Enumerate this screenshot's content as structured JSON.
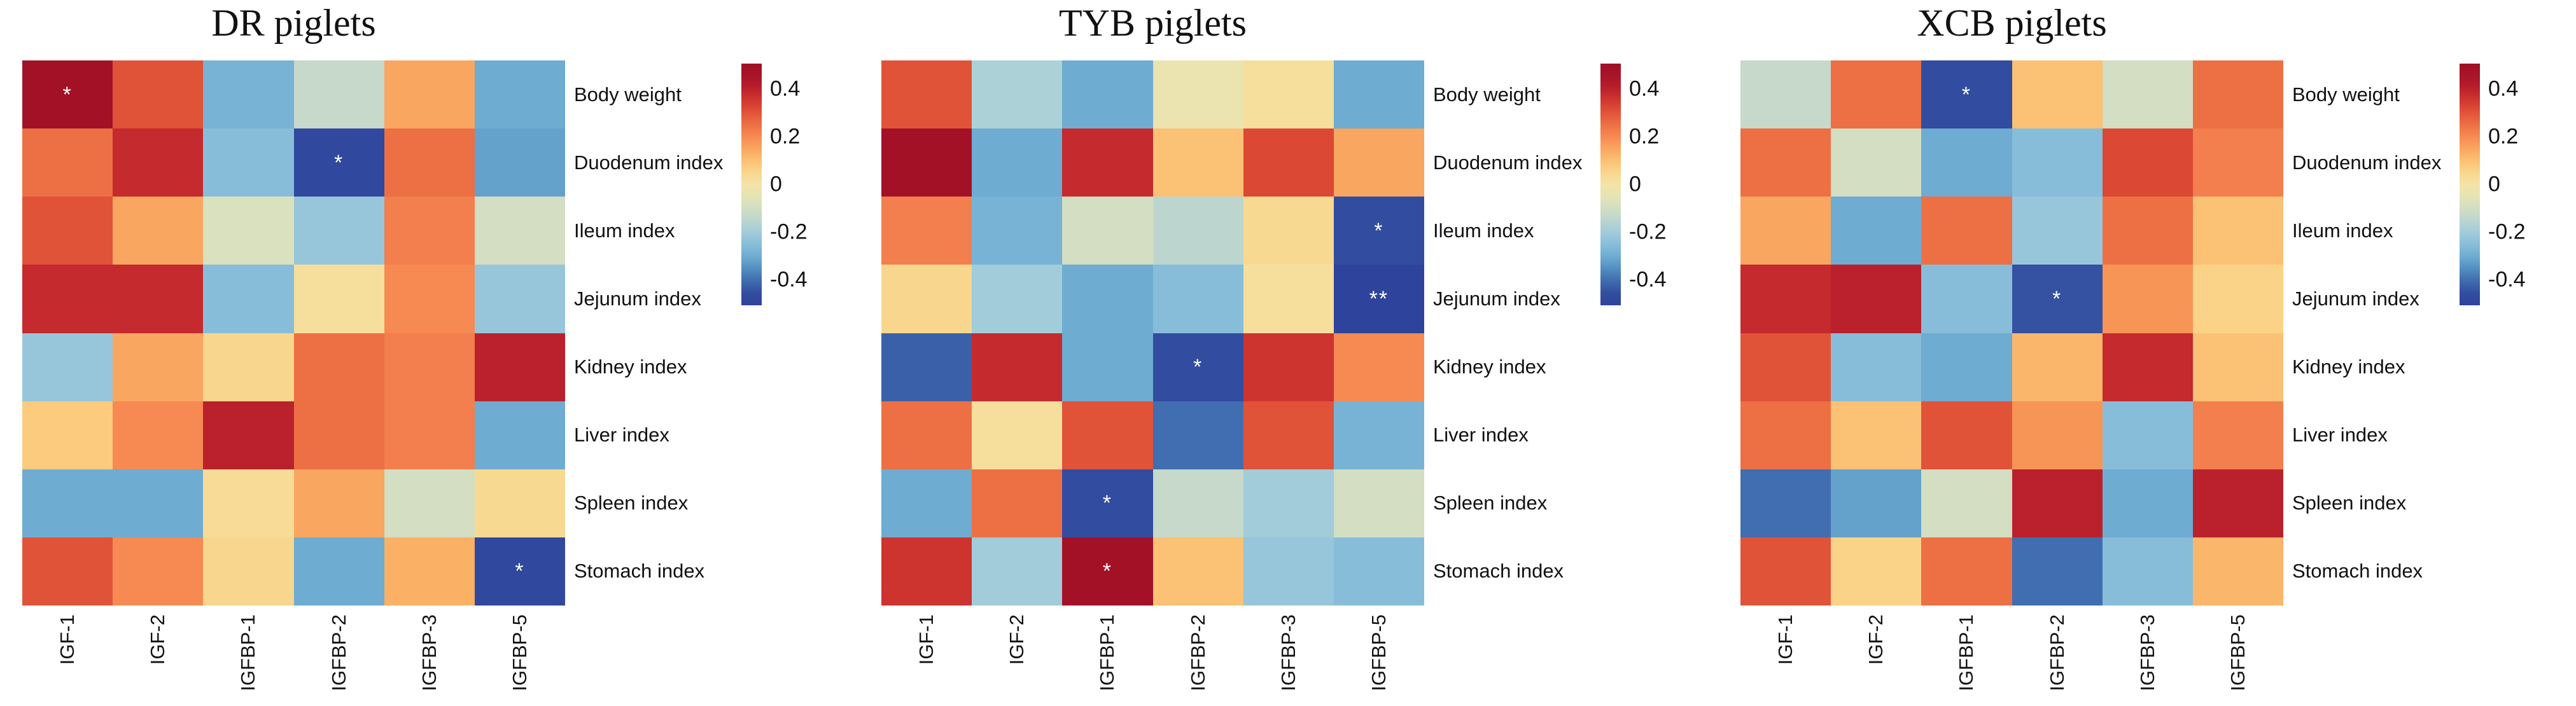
{
  "chart_data": {
    "type": "heatmap",
    "description": "Three correlation heatmaps between IGF-axis gene expression and organ indexes in three piglet breeds",
    "x_labels": [
      "IGF-1",
      "IGF-2",
      "IGFBP-1",
      "IGFBP-2",
      "IGFBP-3",
      "IGFBP-5"
    ],
    "y_labels": [
      "Body weight",
      "Duodenum index",
      "Ileum index",
      "Jejunum index",
      "Kidney index",
      "Liver index",
      "Spleen index",
      "Stomach index"
    ],
    "colorbar_ticks": [
      {
        "label": "0.4",
        "value": 0.4
      },
      {
        "label": "0.2",
        "value": 0.2
      },
      {
        "label": "0",
        "value": 0
      },
      {
        "label": "-0.2",
        "value": -0.2
      },
      {
        "label": "-0.4",
        "value": -0.4
      }
    ],
    "color_scale": {
      "min": -0.5,
      "max": 0.5,
      "palette": "red-yellow-blue",
      "high_color": "#a50f26",
      "mid_color": "#f3e4a6",
      "low_color": "#2c3e98"
    },
    "legend_position": "right-of-each-panel",
    "grid": false,
    "panels": [
      {
        "title": "DR piglets",
        "values": [
          [
            0.48,
            0.3,
            -0.28,
            -0.13,
            0.15,
            -0.3
          ],
          [
            0.25,
            0.38,
            -0.25,
            -0.48,
            0.25,
            -0.32
          ],
          [
            0.3,
            0.15,
            -0.08,
            -0.22,
            0.22,
            -0.1
          ],
          [
            0.38,
            0.38,
            -0.25,
            0.02,
            0.2,
            -0.22
          ],
          [
            -0.22,
            0.15,
            0.05,
            0.25,
            0.22,
            0.4
          ],
          [
            0.08,
            0.2,
            0.4,
            0.25,
            0.22,
            -0.3
          ],
          [
            -0.3,
            -0.3,
            0.03,
            0.15,
            -0.1,
            0.04
          ],
          [
            0.3,
            0.2,
            0.05,
            -0.3,
            0.13,
            -0.48
          ]
        ],
        "significance": [
          [
            "*",
            "",
            "",
            "",
            "",
            ""
          ],
          [
            "",
            "",
            "",
            "*",
            "",
            ""
          ],
          [
            "",
            "",
            "",
            "",
            "",
            ""
          ],
          [
            "",
            "",
            "",
            "",
            "",
            ""
          ],
          [
            "",
            "",
            "",
            "",
            "",
            ""
          ],
          [
            "",
            "",
            "",
            "",
            "",
            ""
          ],
          [
            "",
            "",
            "",
            "",
            "",
            ""
          ],
          [
            "",
            "",
            "",
            "",
            "",
            "*"
          ]
        ]
      },
      {
        "title": "TYB piglets",
        "values": [
          [
            0.3,
            -0.18,
            -0.3,
            -0.03,
            0.02,
            -0.3
          ],
          [
            0.48,
            -0.3,
            0.38,
            0.1,
            0.32,
            0.15
          ],
          [
            0.22,
            -0.28,
            -0.1,
            -0.15,
            0.04,
            -0.46
          ],
          [
            0.05,
            -0.2,
            -0.3,
            -0.25,
            0.02,
            -0.5
          ],
          [
            -0.42,
            0.38,
            -0.3,
            -0.46,
            0.36,
            0.2
          ],
          [
            0.25,
            0.02,
            0.3,
            -0.4,
            0.3,
            -0.28
          ],
          [
            -0.3,
            0.25,
            -0.46,
            -0.13,
            -0.2,
            -0.1
          ],
          [
            0.36,
            -0.2,
            0.48,
            0.1,
            -0.22,
            -0.25
          ]
        ],
        "significance": [
          [
            "",
            "",
            "",
            "",
            "",
            ""
          ],
          [
            "",
            "",
            "",
            "",
            "",
            ""
          ],
          [
            "",
            "",
            "",
            "",
            "",
            "*"
          ],
          [
            "",
            "",
            "",
            "",
            "",
            "**"
          ],
          [
            "",
            "",
            "",
            "*",
            "",
            ""
          ],
          [
            "",
            "",
            "",
            "",
            "",
            ""
          ],
          [
            "",
            "",
            "*",
            "",
            "",
            ""
          ],
          [
            "",
            "",
            "*",
            "",
            "",
            ""
          ]
        ]
      },
      {
        "title": "XCB piglets",
        "values": [
          [
            -0.13,
            0.25,
            -0.46,
            0.1,
            -0.1,
            0.25
          ],
          [
            0.25,
            -0.1,
            -0.3,
            -0.25,
            0.32,
            0.22
          ],
          [
            0.15,
            -0.3,
            0.25,
            -0.22,
            0.25,
            0.1
          ],
          [
            0.38,
            0.4,
            -0.25,
            -0.44,
            0.18,
            0.06
          ],
          [
            0.3,
            -0.25,
            -0.3,
            0.12,
            0.38,
            0.1
          ],
          [
            0.25,
            0.1,
            0.3,
            0.18,
            -0.25,
            0.22
          ],
          [
            -0.4,
            -0.32,
            -0.1,
            0.4,
            -0.3,
            0.4
          ],
          [
            0.3,
            0.06,
            0.25,
            -0.4,
            -0.25,
            0.12
          ]
        ],
        "significance": [
          [
            "",
            "",
            "*",
            "",
            "",
            ""
          ],
          [
            "",
            "",
            "",
            "",
            "",
            ""
          ],
          [
            "",
            "",
            "",
            "",
            "",
            ""
          ],
          [
            "",
            "",
            "",
            "*",
            "",
            ""
          ],
          [
            "",
            "",
            "",
            "",
            "",
            ""
          ],
          [
            "",
            "",
            "",
            "",
            "",
            ""
          ],
          [
            "",
            "",
            "",
            "",
            "",
            ""
          ],
          [
            "",
            "",
            "",
            "",
            "",
            ""
          ]
        ]
      }
    ]
  }
}
